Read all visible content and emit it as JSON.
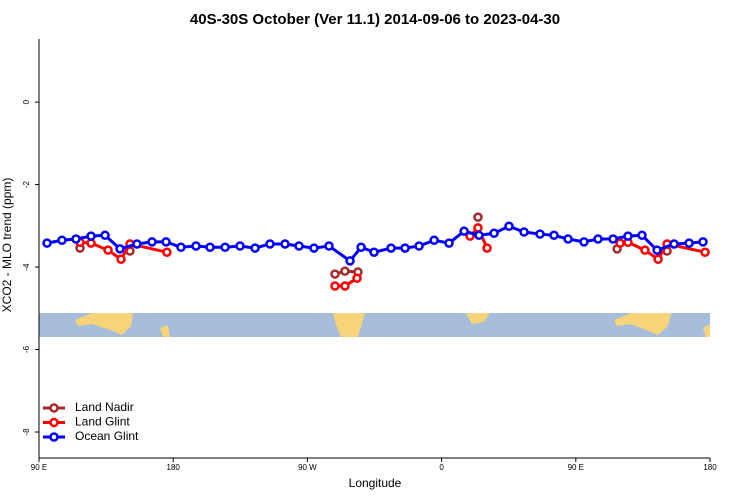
{
  "chart_data": {
    "type": "line",
    "title": "40S-30S October (Ver 11.1)   2014-09-06 to 2023-04-30",
    "x_label": "Longitude",
    "y_label": "XCO2 - MLO trend (ppm)",
    "xlim": [
      90,
      540
    ],
    "xticks": [
      {
        "value": 90,
        "label": "90 E"
      },
      180,
      {
        "value": 270,
        "label": "90 W"
      },
      {
        "value": 360,
        "label": "0"
      },
      {
        "value": 450,
        "label": "90 E"
      },
      {
        "value": 540,
        "label": "180"
      }
    ],
    "ylim": [
      -8.63,
      1.53
    ],
    "yticks": [
      0,
      -2,
      -4,
      -6,
      -8
    ],
    "legend": "bottom-left",
    "series": [
      {
        "name": "Land Nadir",
        "color": "#a52a2a",
        "x": [
          117.5,
          null,
          151.0,
          null,
          288.5,
          295.2,
          303.9,
          null,
          384.4,
          null,
          477.7,
          null,
          511.2
        ],
        "values": [
          -3.54,
          null,
          -3.61,
          null,
          -4.17,
          -4.1,
          -4.12,
          null,
          -2.79,
          null,
          -3.56,
          null,
          -3.61
        ]
      },
      {
        "name": "Land Glint",
        "color": "#ff0000",
        "x": [
          117.5,
          124.9,
          136.3,
          145.0,
          151.0,
          175.8,
          null,
          288.5,
          295.2,
          303.3,
          null,
          379.1,
          384.4,
          390.5,
          null,
          479.7,
          485.0,
          496.4,
          505.2,
          511.2,
          536.7
        ],
        "values": [
          -3.4,
          -3.42,
          -3.59,
          -3.81,
          -3.44,
          -3.64,
          null,
          -4.46,
          -4.46,
          -4.27,
          null,
          -3.25,
          -3.05,
          -3.54,
          null,
          -3.42,
          -3.4,
          -3.59,
          -3.81,
          -3.44,
          -3.64
        ]
      },
      {
        "name": "Ocean Glint",
        "color": "#0000ff",
        "x": [
          95.4,
          105.4,
          114.8,
          124.9,
          134.3,
          144.3,
          155.7,
          165.8,
          175.2,
          185.2,
          195.3,
          204.7,
          214.8,
          224.8,
          234.9,
          244.9,
          255.0,
          264.4,
          274.4,
          284.5,
          298.6,
          306.0,
          314.7,
          326.1,
          335.5,
          344.9,
          355.0,
          365.0,
          375.1,
          385.1,
          395.2,
          405.2,
          415.3,
          426.0,
          435.4,
          444.8,
          455.5,
          464.9,
          475.0,
          485.0,
          494.4,
          504.5,
          515.9,
          526.0,
          535.3
        ],
        "values": [
          -3.42,
          -3.35,
          -3.32,
          -3.25,
          -3.23,
          -3.56,
          -3.44,
          -3.39,
          -3.39,
          -3.52,
          -3.49,
          -3.52,
          -3.52,
          -3.49,
          -3.54,
          -3.44,
          -3.44,
          -3.49,
          -3.54,
          -3.49,
          -3.85,
          -3.52,
          -3.64,
          -3.54,
          -3.54,
          -3.49,
          -3.35,
          -3.42,
          -3.13,
          -3.23,
          -3.18,
          -3.01,
          -3.15,
          -3.2,
          -3.23,
          -3.32,
          -3.39,
          -3.32,
          -3.32,
          -3.25,
          -3.23,
          -3.59,
          -3.44,
          -3.42,
          -3.39
        ]
      }
    ]
  }
}
